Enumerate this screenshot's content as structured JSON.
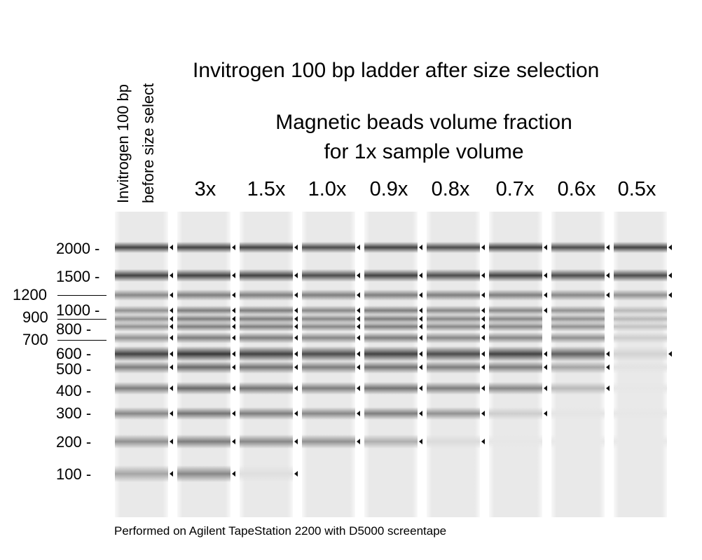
{
  "title": "Invitrogen 100 bp ladder after size selection",
  "subtitle_line1": "Magnetic beads volume fraction",
  "subtitle_line2": "for 1x sample volume",
  "ladder_header_line1": "Invitrogen 100 bp",
  "ladder_header_line2": "before size select",
  "footer": "Performed on Agilent TapeStation 2200 with D5000 screentape",
  "lanes": [
    {
      "label": ""
    },
    {
      "label": "3x"
    },
    {
      "label": "1.5x"
    },
    {
      "label": "1.0x"
    },
    {
      "label": "0.9x"
    },
    {
      "label": "0.8x"
    },
    {
      "label": "0.7x"
    },
    {
      "label": "0.6x"
    },
    {
      "label": "0.5x"
    }
  ],
  "size_labels": [
    "2000 -",
    "1500 -",
    "1200",
    "1000 -",
    "900",
    "800 -",
    "700",
    "600 -",
    "500 -",
    "400 -",
    "300 -",
    "200 -",
    "100 -"
  ]
}
